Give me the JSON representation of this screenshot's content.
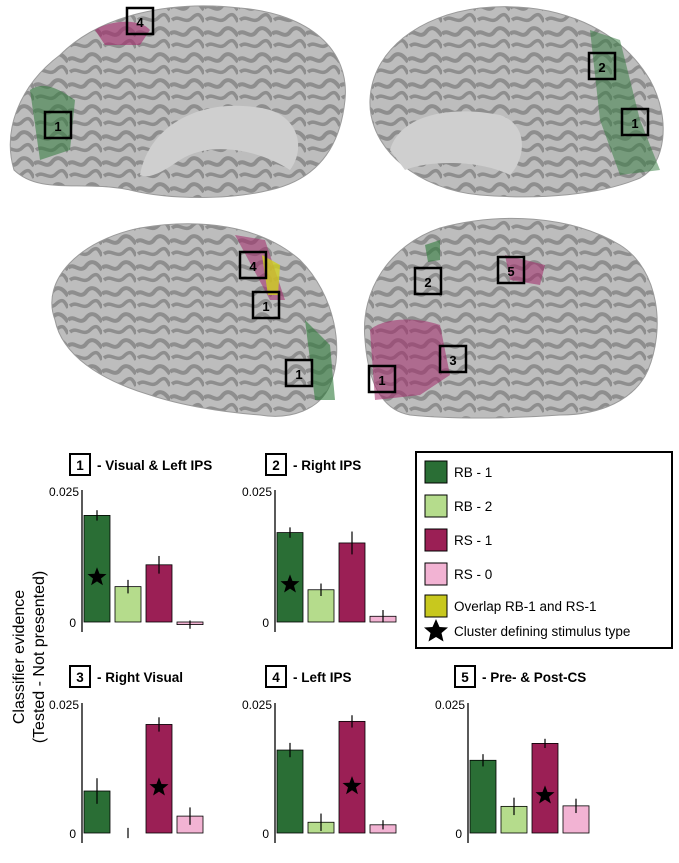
{
  "figure": {
    "ylabel_line1": "Classifier evidence",
    "ylabel_line2": "(Tested - Not presented)"
  },
  "brains": {
    "left_medial_labels": [
      "4",
      "1"
    ],
    "right_medial_labels": [
      "2",
      "1"
    ],
    "left_lateral_labels": [
      "4",
      "1",
      "1"
    ],
    "right_lateral_labels": [
      "5",
      "2",
      "3",
      "1"
    ],
    "colors": {
      "cortex_light": "#b9b9b9",
      "cortex_dark": "#8a8a8a",
      "rb1": "#2f7a3b",
      "rs1": "#a3286a",
      "overlap": "#cfcf1f"
    }
  },
  "legend": {
    "items": [
      {
        "label": "RB - 1",
        "color": "#2a6e35"
      },
      {
        "label": "RB - 2",
        "color": "#b5dc8c"
      },
      {
        "label": "RS - 1",
        "color": "#9b1f55"
      },
      {
        "label": "RS - 0",
        "color": "#f2b3d3"
      },
      {
        "label": "Overlap RB-1 and RS-1",
        "color": "#c8c81e"
      }
    ],
    "star_label": "Cluster defining stimulus type"
  },
  "chart_data": [
    {
      "type": "bar",
      "num": "1",
      "title": "- Visual & Left IPS",
      "categories": [
        "RB - 1",
        "RB - 2",
        "RS - 1",
        "RS - 0"
      ],
      "values": [
        0.0205,
        0.0068,
        0.011,
        -0.0005
      ],
      "errors": [
        0.001,
        0.0013,
        0.0017,
        0.0008
      ],
      "star_index": 0,
      "yticks": [
        "0.025",
        "0"
      ],
      "ylim": [
        0,
        0.025
      ]
    },
    {
      "type": "bar",
      "num": "2",
      "title": "- Right IPS",
      "categories": [
        "RB - 1",
        "RB - 2",
        "RS - 1",
        "RS - 0"
      ],
      "values": [
        0.0172,
        0.0062,
        0.0152,
        0.0011
      ],
      "errors": [
        0.001,
        0.0012,
        0.0022,
        0.0012
      ],
      "star_index": 0,
      "yticks": [
        "0.025",
        "0"
      ],
      "ylim": [
        0,
        0.025
      ]
    },
    {
      "type": "bar",
      "num": "3",
      "title": "- Right Visual",
      "categories": [
        "RB - 1",
        "RB - 2",
        "RS - 1",
        "RS - 0"
      ],
      "values": [
        0.0082,
        0.0,
        0.0212,
        0.0033
      ],
      "errors": [
        0.0025,
        0.001,
        0.0014,
        0.0017
      ],
      "star_index": 2,
      "yticks": [
        "0.025",
        "0"
      ],
      "ylim": [
        0,
        0.025
      ]
    },
    {
      "type": "bar",
      "num": "4",
      "title": "- Left IPS",
      "categories": [
        "RB - 1",
        "RB - 2",
        "RS - 1",
        "RS - 0"
      ],
      "values": [
        0.0162,
        0.0021,
        0.0218,
        0.0016
      ],
      "errors": [
        0.0014,
        0.0017,
        0.0012,
        0.0009
      ],
      "star_index": 2,
      "yticks": [
        "0.025",
        "0"
      ],
      "ylim": [
        0,
        0.025
      ]
    },
    {
      "type": "bar",
      "num": "5",
      "title": "- Pre- & Post-CS",
      "categories": [
        "RB - 1",
        "RB - 2",
        "RS - 1",
        "RS - 0"
      ],
      "values": [
        0.0142,
        0.0052,
        0.0175,
        0.0053
      ],
      "errors": [
        0.0012,
        0.0017,
        0.0009,
        0.0014
      ],
      "star_index": 2,
      "yticks": [
        "0.025",
        "0"
      ],
      "ylim": [
        0,
        0.025
      ]
    }
  ]
}
